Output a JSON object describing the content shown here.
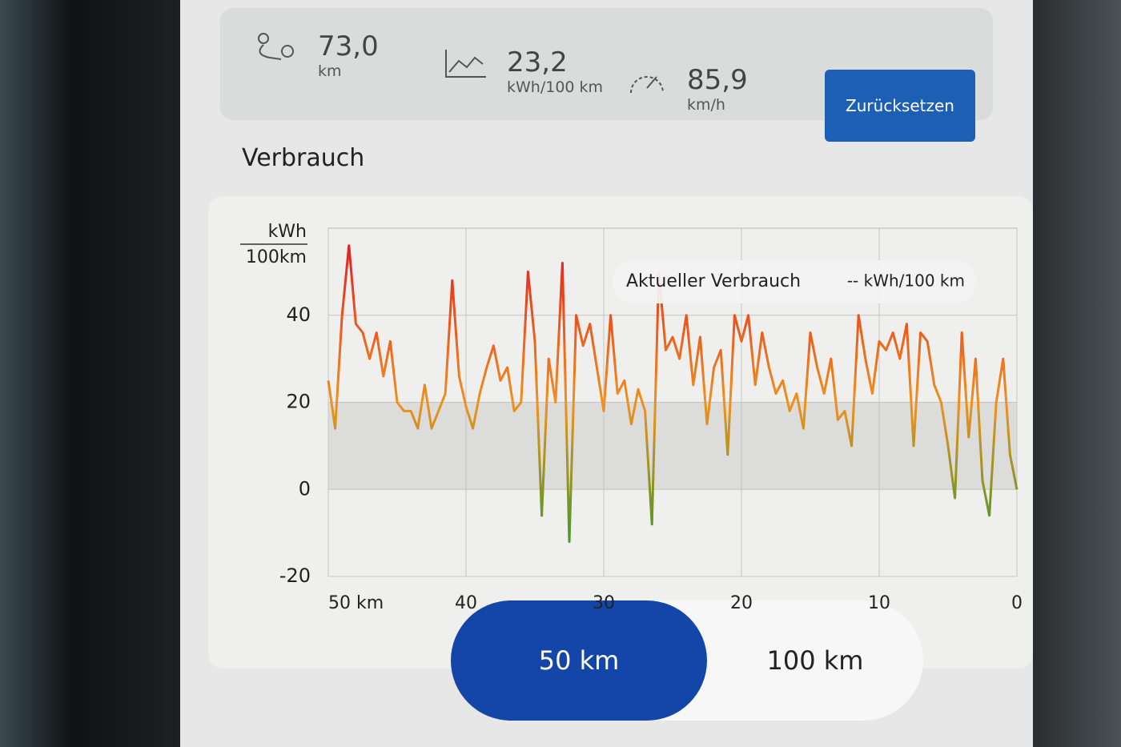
{
  "stats": [
    {
      "value": "73,0",
      "unit": "km"
    },
    {
      "value": "23,2",
      "unit": "kWh/100 km"
    },
    {
      "value": "85,9",
      "unit": "km/h"
    }
  ],
  "reset_button": "Zurücksetzen",
  "section_title": "Verbrauch",
  "chart_data": {
    "type": "line",
    "y_unit": {
      "numerator": "kWh",
      "denominator": "100km"
    },
    "tooltip": {
      "label": "Aktueller Verbrauch",
      "value": "-- kWh/100 km"
    },
    "xlim": [
      50,
      0
    ],
    "xticks": [
      {
        "value": 50,
        "label": "50 km"
      },
      40,
      30,
      20,
      10,
      0
    ],
    "ylim": [
      -20,
      60
    ],
    "yticks": [
      40,
      20,
      0,
      -20
    ],
    "grid": true,
    "highlight_band": [
      0,
      20
    ],
    "colors": [
      "#e3141f",
      "#f0901e",
      "#1e9a2e"
    ],
    "x": [
      50,
      49.5,
      49,
      48.5,
      48,
      47.5,
      47,
      46.5,
      46,
      45.5,
      45,
      44.5,
      44,
      43.5,
      43,
      42.5,
      42,
      41.5,
      41,
      40.5,
      40,
      39.5,
      39,
      38.5,
      38,
      37.5,
      37,
      36.5,
      36,
      35.5,
      35,
      34.5,
      34,
      33.5,
      33,
      32.5,
      32,
      31.5,
      31,
      30.5,
      30,
      29.5,
      29,
      28.5,
      28,
      27.5,
      27,
      26.5,
      26,
      25.5,
      25,
      24.5,
      24,
      23.5,
      23,
      22.5,
      22,
      21.5,
      21,
      20.5,
      20,
      19.5,
      19,
      18.5,
      18,
      17.5,
      17,
      16.5,
      16,
      15.5,
      15,
      14.5,
      14,
      13.5,
      13,
      12.5,
      12,
      11.5,
      11,
      10.5,
      10,
      9.5,
      9,
      8.5,
      8,
      7.5,
      7,
      6.5,
      6,
      5.5,
      5,
      4.5,
      4,
      3.5,
      3,
      2.5,
      2,
      1.5,
      1,
      0.5,
      0
    ],
    "values": [
      25,
      14,
      40,
      56,
      38,
      36,
      30,
      36,
      26,
      34,
      20,
      18,
      18,
      14,
      24,
      14,
      18,
      22,
      48,
      26,
      19,
      14,
      22,
      28,
      33,
      25,
      28,
      18,
      20,
      50,
      34,
      -6,
      30,
      20,
      52,
      -12,
      40,
      33,
      38,
      28,
      18,
      40,
      22,
      25,
      15,
      23,
      18,
      -8,
      50,
      32,
      35,
      30,
      40,
      24,
      35,
      15,
      28,
      32,
      8,
      40,
      34,
      40,
      24,
      36,
      28,
      22,
      25,
      18,
      22,
      14,
      36,
      28,
      22,
      30,
      16,
      18,
      10,
      40,
      30,
      22,
      34,
      32,
      36,
      30,
      38,
      10,
      36,
      34,
      24,
      20,
      10,
      -2,
      36,
      12,
      30,
      2,
      -6,
      20,
      30,
      8,
      0
    ]
  },
  "range_options": [
    "50 km",
    "100 km"
  ]
}
